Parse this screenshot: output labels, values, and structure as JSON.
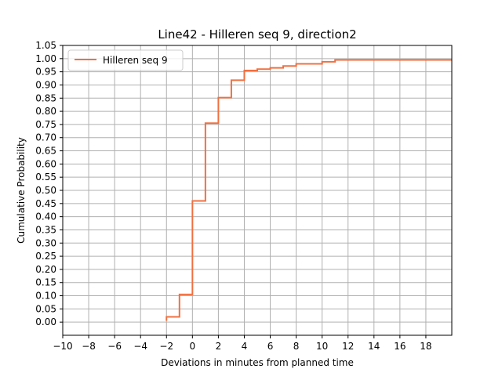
{
  "chart_data": {
    "type": "line",
    "title": "Line42 - Hilleren seq 9, direction2",
    "xlabel": "Deviations in minutes from planned time",
    "ylabel": "Cumulative Probability",
    "xlim": [
      -10,
      20
    ],
    "ylim": [
      -0.05,
      1.05
    ],
    "xticks": [
      -10,
      -8,
      -6,
      -4,
      -2,
      0,
      2,
      4,
      6,
      8,
      10,
      12,
      14,
      16,
      18
    ],
    "xtick_labels": [
      "−10",
      "−8",
      "−6",
      "−4",
      "−2",
      "0",
      "2",
      "4",
      "6",
      "8",
      "10",
      "12",
      "14",
      "16",
      "18"
    ],
    "yticks": [
      0.0,
      0.05,
      0.1,
      0.15,
      0.2,
      0.25,
      0.3,
      0.35,
      0.4,
      0.45,
      0.5,
      0.55,
      0.6,
      0.65,
      0.7,
      0.75,
      0.8,
      0.85,
      0.9,
      0.95,
      1.0,
      1.05
    ],
    "ytick_labels": [
      "0.00",
      "0.05",
      "0.10",
      "0.15",
      "0.20",
      "0.25",
      "0.30",
      "0.35",
      "0.40",
      "0.45",
      "0.50",
      "0.55",
      "0.60",
      "0.65",
      "0.70",
      "0.75",
      "0.80",
      "0.85",
      "0.90",
      "0.95",
      "1.00",
      "1.05"
    ],
    "grid": true,
    "legend_position": "top-left",
    "step": "post",
    "series": [
      {
        "name": "Hilleren seq 9",
        "color": "#f07040",
        "x": [
          -2,
          -2,
          -1,
          0,
          1,
          2,
          3,
          4,
          5,
          6,
          7,
          8,
          10,
          11,
          20
        ],
        "y": [
          0.005,
          0.02,
          0.105,
          0.46,
          0.755,
          0.852,
          0.918,
          0.955,
          0.96,
          0.965,
          0.972,
          0.98,
          0.988,
          0.995,
          0.995
        ]
      }
    ]
  }
}
